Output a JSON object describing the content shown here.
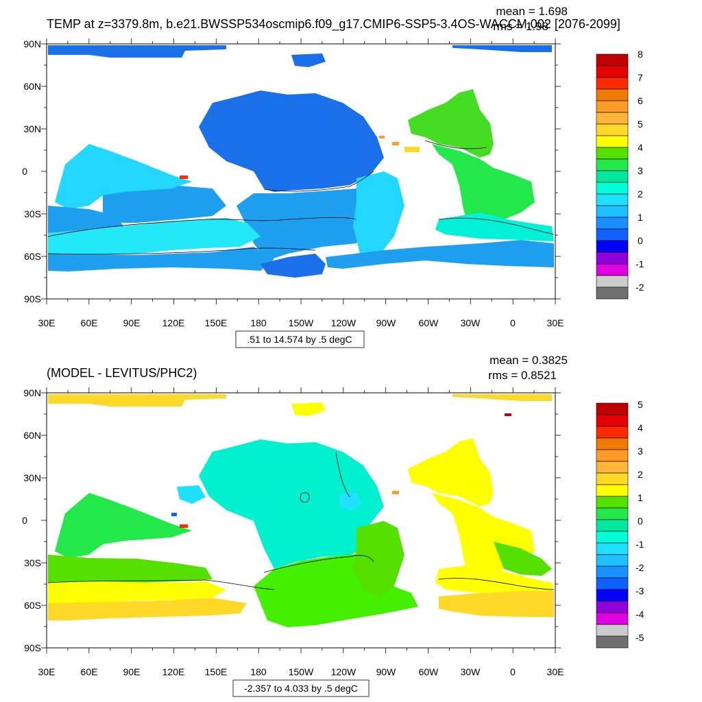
{
  "panels": [
    {
      "title": "TEMP at z=3379.8m, b.e21.BWSSP534oscmip6.f09_g17.CMIP6-SSP5-3.4OS-WACCM.002 [2076-2099]",
      "mean": "mean = 1.698",
      "rms": "rms = 1.98",
      "range_label": ".51 to 14.574 by .5 degC",
      "colorbar_labels": [
        "8",
        "7",
        "6",
        "5",
        "4",
        "3",
        "2",
        "1",
        "0",
        "-1",
        "-2"
      ],
      "colorbar_colors": [
        "#c00000",
        "#e60000",
        "#ff2a00",
        "#ee7a00",
        "#ff9a26",
        "#ffb43c",
        "#ffd828",
        "#ffff00",
        "#55e000",
        "#22e84a",
        "#00e8a0",
        "#00ffd8",
        "#20e0ff",
        "#1ec0ff",
        "#1a90ff",
        "#1060ff",
        "#0000ff",
        "#9000d8",
        "#e000e0",
        "#cccccc",
        "#707070"
      ]
    },
    {
      "title": "(MODEL - LEVITUS/PHC2)",
      "mean": "mean = 0.3825",
      "rms": "rms = 0.8521",
      "range_label": "-2.357 to 4.033 by .5 degC",
      "colorbar_labels": [
        "5",
        "4",
        "3",
        "2",
        "1",
        "0",
        "-1",
        "-2",
        "-3",
        "-4",
        "-5"
      ],
      "colorbar_colors": [
        "#c00000",
        "#e60000",
        "#ff2a00",
        "#ee7a00",
        "#ff9a26",
        "#ffb43c",
        "#ffd828",
        "#ffff00",
        "#55e000",
        "#22e84a",
        "#00e8a0",
        "#00ffd8",
        "#20e0ff",
        "#1ec0ff",
        "#1a90ff",
        "#1060ff",
        "#0000ff",
        "#9000d8",
        "#e000e0",
        "#cccccc",
        "#707070"
      ]
    }
  ],
  "axes": {
    "lat_labels": [
      "90N",
      "60N",
      "30N",
      "0",
      "30S",
      "60S",
      "90S"
    ],
    "lon_labels": [
      "30E",
      "60E",
      "90E",
      "120E",
      "150E",
      "180",
      "150W",
      "120W",
      "90W",
      "60W",
      "30W",
      "0",
      "30E"
    ]
  },
  "map_colors": {
    "top_deep_blue": "#1a70e8",
    "top_mid_blue": "#1e9ff0",
    "top_light_blue": "#22d8ff",
    "top_cyan": "#00f0e8",
    "top_green": "#44dd22",
    "bottom_teal": "#00f0d0",
    "bottom_green": "#55e000",
    "bottom_lime": "#44f000",
    "bottom_yellow": "#ffff00",
    "bottom_gold": "#ffd828"
  }
}
